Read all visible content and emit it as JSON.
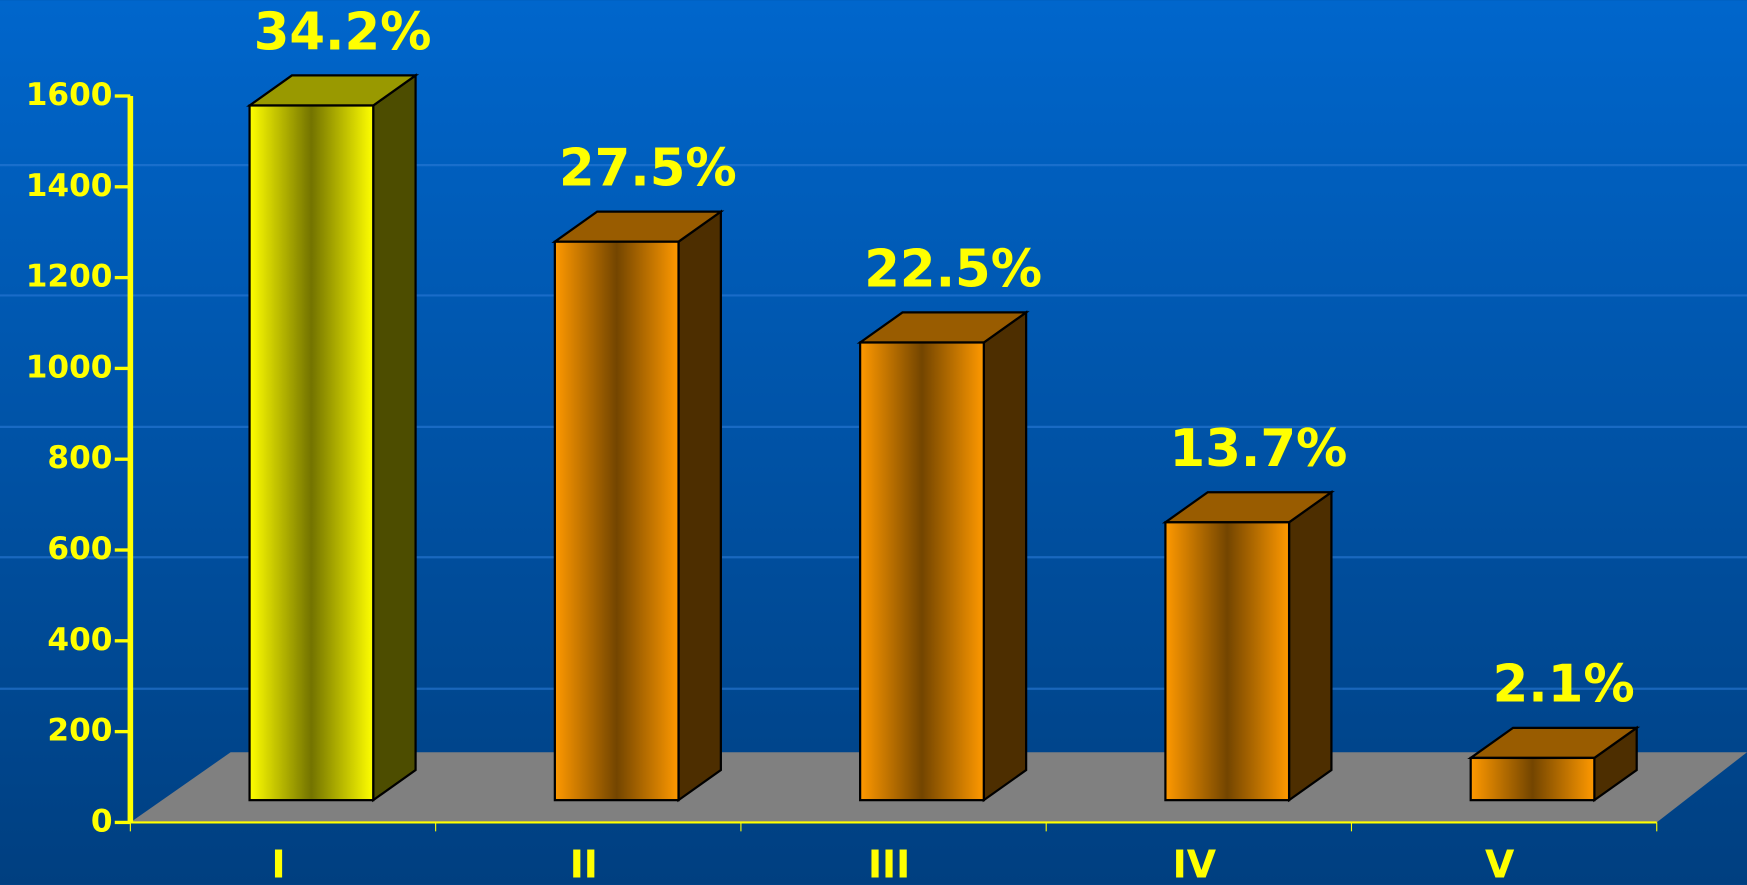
{
  "chart_data": {
    "type": "bar3d",
    "categories": [
      "I",
      "II",
      "III",
      "IV",
      "V"
    ],
    "values": [
      1530,
      1230,
      1008,
      612,
      93
    ],
    "percent_labels": [
      "34.2%",
      "27.5%",
      "22.5%",
      "13.7%",
      "2.1%"
    ],
    "colors": [
      "#ffff00",
      "#ff9900",
      "#ff9900",
      "#ff9900",
      "#ff9900"
    ],
    "ylim": [
      0,
      1600
    ],
    "yticks": [
      0,
      200,
      400,
      600,
      800,
      1000,
      1200,
      1400,
      1600
    ],
    "axis_color": "#ffff00",
    "floor_color": "#808080"
  }
}
